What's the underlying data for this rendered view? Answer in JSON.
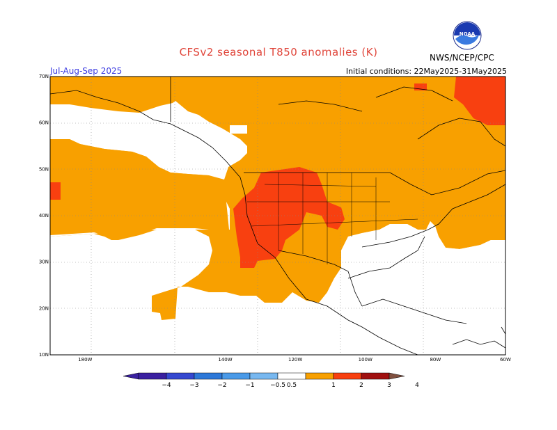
{
  "title": "CFSv2 seasonal T850 anomalies (K)",
  "season": "Jul-Aug-Sep 2025",
  "initial_conditions": "Initial conditions: 22May2025-31May2025",
  "agency": "NWS/NCEP/CPC",
  "logo_text": "NOAA",
  "map": {
    "lon_range": [
      -190,
      -60
    ],
    "lat_range": [
      10,
      70
    ],
    "lat_ticks": [
      {
        "value": 70,
        "label": "70N"
      },
      {
        "value": 60,
        "label": "60N"
      },
      {
        "value": 50,
        "label": "50N"
      },
      {
        "value": 40,
        "label": "40N"
      },
      {
        "value": 30,
        "label": "30N"
      },
      {
        "value": 20,
        "label": "20N"
      },
      {
        "value": 10,
        "label": "10N"
      }
    ],
    "lon_ticks": [
      {
        "value": -180,
        "label": "180W"
      },
      {
        "value": -140,
        "label": "140W"
      },
      {
        "value": -120,
        "label": "120W"
      },
      {
        "value": -100,
        "label": "100W"
      },
      {
        "value": -80,
        "label": "80W"
      },
      {
        "value": -60,
        "label": "60W"
      }
    ]
  },
  "colorbar": {
    "colors": [
      "#3a20a0",
      "#3548d0",
      "#2d78d8",
      "#4a9ae8",
      "#78b8f0",
      "#ffffff",
      "#f8a000",
      "#f84010",
      "#a01010",
      "#c8a090",
      "#805040"
    ],
    "labels": [
      "−4",
      "−3",
      "−2",
      "−1",
      "−0.5",
      "0.5",
      "1",
      "2",
      "3",
      "4"
    ]
  },
  "colors": {
    "warm_05_1": "#f8a000",
    "warm_1_2": "#f84010",
    "grid": "#888888"
  }
}
